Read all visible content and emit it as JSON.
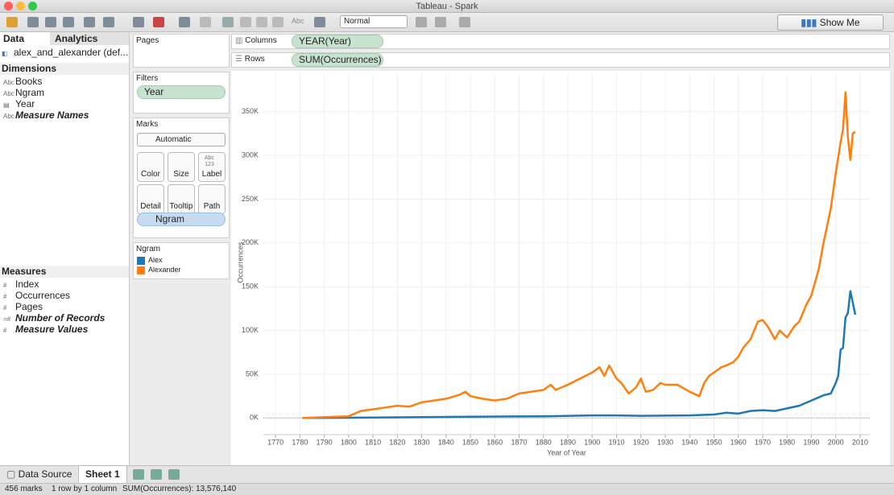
{
  "ui": {
    "window_title": "Tableau - Spark",
    "toolbar_abc": "Abc",
    "toolbar_mode": "Normal",
    "show_me": "Show Me",
    "tabs": [
      "Data",
      "Analytics"
    ],
    "datasource": "alex_and_alexander (def...",
    "dimensions_header": "Dimensions",
    "dimensions": [
      {
        "type": "Abc",
        "name": "Books"
      },
      {
        "type": "Abc",
        "name": "Ngram"
      },
      {
        "type": "▤",
        "name": "Year"
      },
      {
        "type": "Abc",
        "name": "Measure Names"
      }
    ],
    "measures_header": "Measures",
    "measures": [
      {
        "type": "#",
        "name": "Index"
      },
      {
        "type": "#",
        "name": "Occurrences"
      },
      {
        "type": "#",
        "name": "Pages"
      },
      {
        "type": "=#",
        "name": "Number of Records"
      },
      {
        "type": "#",
        "name": "Measure Values"
      }
    ],
    "pages": "Pages",
    "filters": "Filters",
    "filter_pill": "Year",
    "marks": "Marks",
    "mark_type": "Automatic",
    "mark_buttons": [
      "Color",
      "Size",
      "Label",
      "Detail",
      "Tooltip",
      "Path"
    ],
    "label_icon": "Abc 123",
    "marks_pill": "Ngram",
    "legend_title": "Ngram",
    "columns_label": "Columns",
    "columns_pill": "YEAR(Year)",
    "rows_label": "Rows",
    "rows_pill": "SUM(Occurrences)",
    "sheet_tabs": [
      "Data Source",
      "Sheet 1"
    ],
    "status": [
      "456 marks",
      "1 row by 1 column",
      "SUM(Occurrences): 13,576,140"
    ]
  },
  "chart_data": {
    "type": "line",
    "x_label": "Year of Year",
    "y_label": "Occurrences",
    "xlim": [
      1765,
      2014
    ],
    "xticks": [
      1770,
      1780,
      1790,
      1800,
      1810,
      1820,
      1830,
      1840,
      1850,
      1860,
      1870,
      1880,
      1890,
      1900,
      1910,
      1920,
      1930,
      1940,
      1950,
      1960,
      1970,
      1980,
      1990,
      2000,
      2010
    ],
    "ylim": [
      -19000,
      393000
    ],
    "yticks": [
      {
        "value": 0,
        "label": "0K"
      },
      {
        "value": 50000,
        "label": "50K"
      },
      {
        "value": 100000,
        "label": "100K"
      },
      {
        "value": 150000,
        "label": "150K"
      },
      {
        "value": 200000,
        "label": "200K"
      },
      {
        "value": 250000,
        "label": "250K"
      },
      {
        "value": 300000,
        "label": "300K"
      },
      {
        "value": 350000,
        "label": "350K"
      }
    ],
    "grid": true,
    "series": [
      {
        "name": "Alex",
        "color": "#1f77b4",
        "x": [
          1781,
          1800,
          1820,
          1850,
          1880,
          1900,
          1910,
          1920,
          1940,
          1950,
          1955,
          1960,
          1965,
          1970,
          1975,
          1980,
          1985,
          1990,
          1995,
          1998,
          2000,
          2001,
          2002,
          2003,
          2004,
          2005,
          2006,
          2007,
          2008
        ],
        "values": [
          0,
          300,
          800,
          1500,
          2000,
          3000,
          3000,
          2500,
          3000,
          4000,
          6000,
          5000,
          8000,
          9000,
          8000,
          11000,
          14000,
          20000,
          26000,
          28000,
          40000,
          48000,
          78000,
          80000,
          115000,
          120000,
          145000,
          132000,
          118000
        ]
      },
      {
        "name": "Alexander",
        "color": "#ff7f0e",
        "x": [
          1781,
          1790,
          1800,
          1805,
          1810,
          1815,
          1820,
          1825,
          1830,
          1835,
          1840,
          1845,
          1848,
          1850,
          1855,
          1860,
          1865,
          1870,
          1875,
          1880,
          1883,
          1885,
          1890,
          1895,
          1900,
          1903,
          1905,
          1907,
          1910,
          1912,
          1915,
          1918,
          1920,
          1922,
          1925,
          1928,
          1930,
          1935,
          1940,
          1944,
          1946,
          1948,
          1950,
          1953,
          1955,
          1958,
          1960,
          1962,
          1965,
          1968,
          1970,
          1972,
          1975,
          1977,
          1980,
          1983,
          1985,
          1988,
          1990,
          1993,
          1995,
          1998,
          2000,
          2002,
          2003,
          2004,
          2005,
          2006,
          2007,
          2008
        ],
        "values": [
          0,
          1000,
          2000,
          8000,
          10000,
          12000,
          14000,
          13000,
          18000,
          20000,
          22000,
          26000,
          30000,
          25000,
          22000,
          20000,
          22000,
          28000,
          30000,
          32000,
          38000,
          32000,
          38000,
          45000,
          52000,
          58000,
          48000,
          60000,
          45000,
          40000,
          28000,
          35000,
          45000,
          30000,
          32000,
          40000,
          38000,
          38000,
          30000,
          25000,
          40000,
          48000,
          52000,
          58000,
          60000,
          64000,
          70000,
          80000,
          90000,
          110000,
          112000,
          105000,
          90000,
          100000,
          92000,
          105000,
          110000,
          130000,
          140000,
          170000,
          200000,
          240000,
          280000,
          315000,
          330000,
          372000,
          320000,
          295000,
          325000,
          327000
        ]
      }
    ]
  }
}
